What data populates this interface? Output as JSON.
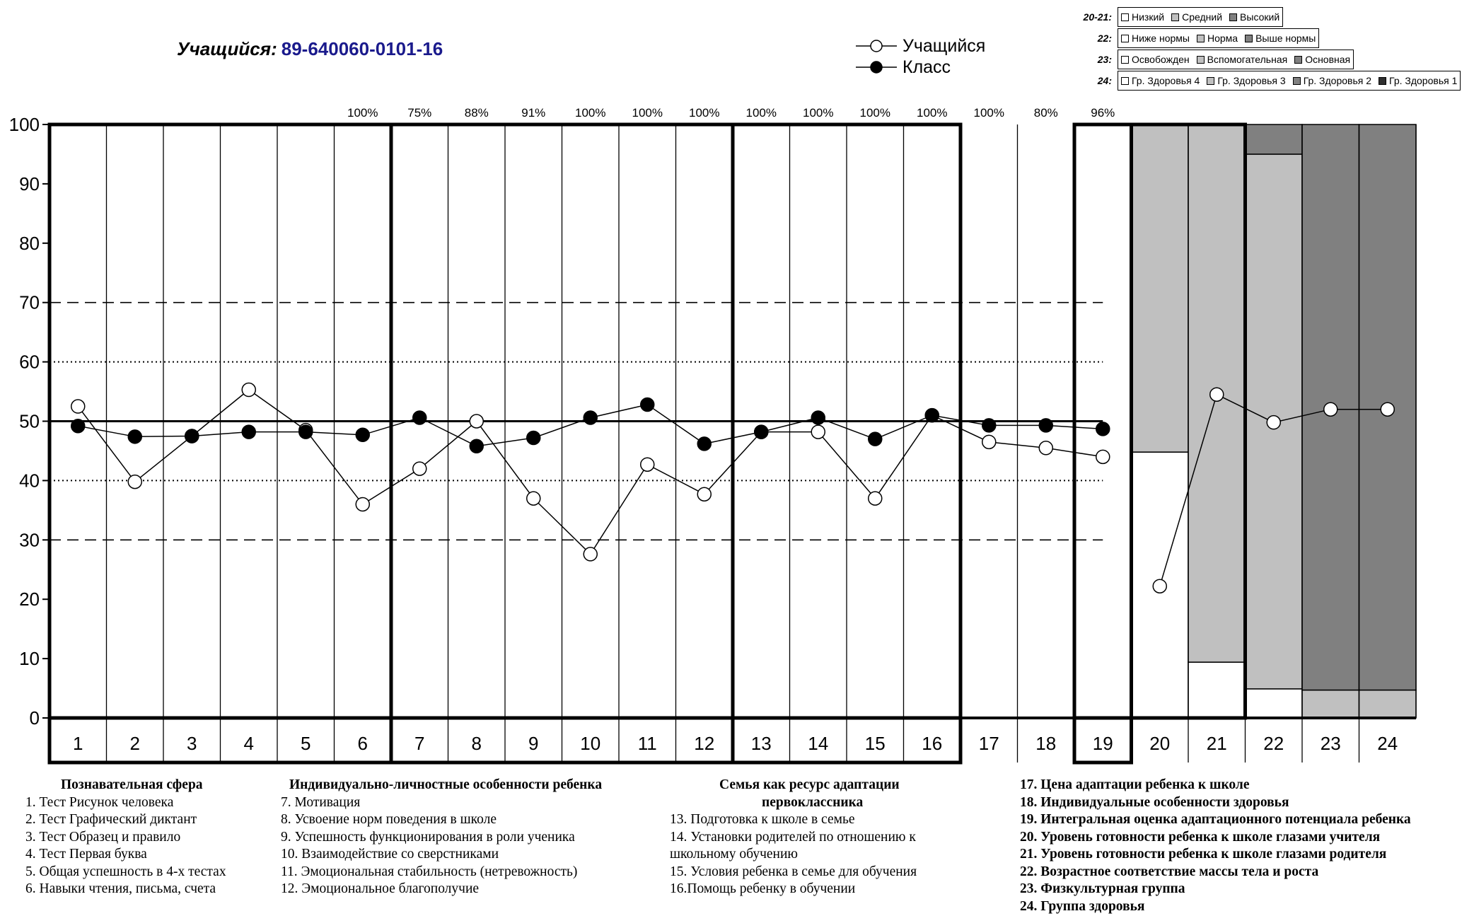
{
  "student": {
    "label": "Учащийся:",
    "id": "89-640060-0101-16"
  },
  "legend": [
    {
      "name": "Учащийся",
      "marker": "open-circle-icon"
    },
    {
      "name": "Класс",
      "marker": "filled-circle-icon"
    }
  ],
  "category_legend": [
    {
      "key": "20-21:",
      "items": [
        {
          "label": "Низкий",
          "color": "#ffffff"
        },
        {
          "label": "Средний",
          "color": "#c0c0c0"
        },
        {
          "label": "Высокий",
          "color": "#808080"
        }
      ]
    },
    {
      "key": "22:",
      "items": [
        {
          "label": "Ниже нормы",
          "color": "#ffffff"
        },
        {
          "label": "Норма",
          "color": "#c0c0c0"
        },
        {
          "label": "Выше нормы",
          "color": "#808080"
        }
      ]
    },
    {
      "key": "23:",
      "items": [
        {
          "label": "Освобожден",
          "color": "#ffffff"
        },
        {
          "label": "Вспомогательная",
          "color": "#c0c0c0"
        },
        {
          "label": "Основная",
          "color": "#808080"
        }
      ]
    },
    {
      "key": "24:",
      "items": [
        {
          "label": "Гр. Здоровья 4",
          "color": "#ffffff"
        },
        {
          "label": "Гр. Здоровья 3",
          "color": "#c0c0c0"
        },
        {
          "label": "Гр. Здоровья 2",
          "color": "#808080"
        },
        {
          "label": "Гр. Здоровья 1",
          "color": "#303030"
        }
      ]
    }
  ],
  "chart_data": {
    "type": "line",
    "categories": [
      "1",
      "2",
      "3",
      "4",
      "5",
      "6",
      "7",
      "8",
      "9",
      "10",
      "11",
      "12",
      "13",
      "14",
      "15",
      "16",
      "17",
      "18",
      "19",
      "20",
      "21",
      "22",
      "23",
      "24"
    ],
    "ylim": [
      0,
      100
    ],
    "yticks": [
      0,
      10,
      20,
      30,
      40,
      50,
      60,
      70,
      80,
      90,
      100
    ],
    "grid": "vertical category lines",
    "percent_labels": [
      {
        "x": 6,
        "text": "100%"
      },
      {
        "x": 7,
        "text": "75%"
      },
      {
        "x": 8,
        "text": "88%"
      },
      {
        "x": 9,
        "text": "91%"
      },
      {
        "x": 10,
        "text": "100%"
      },
      {
        "x": 11,
        "text": "100%"
      },
      {
        "x": 12,
        "text": "100%"
      },
      {
        "x": 13,
        "text": "100%"
      },
      {
        "x": 14,
        "text": "100%"
      },
      {
        "x": 15,
        "text": "100%"
      },
      {
        "x": 16,
        "text": "100%"
      },
      {
        "x": 17,
        "text": "100%"
      },
      {
        "x": 18,
        "text": "80%"
      },
      {
        "x": 19,
        "text": "96%"
      }
    ],
    "reference_lines": [
      {
        "y": 50,
        "style": "solid"
      },
      {
        "y": 40,
        "style": "dotted"
      },
      {
        "y": 60,
        "style": "dotted"
      },
      {
        "y": 30,
        "style": "dashed"
      },
      {
        "y": 70,
        "style": "dashed"
      }
    ],
    "series": [
      {
        "name": "Учащийся",
        "marker": "open",
        "segments": [
          {
            "x": [
              1,
              2,
              3,
              4,
              5,
              6,
              7,
              8,
              9,
              10,
              11,
              12,
              13,
              14,
              15,
              16,
              17,
              18,
              19
            ],
            "values": [
              52.5,
              39.8,
              47.5,
              55.3,
              48.5,
              36,
              42,
              50,
              37,
              27.6,
              42.7,
              37.7,
              48.2,
              48.2,
              37,
              51,
              46.5,
              45.5,
              44
            ]
          },
          {
            "x": [
              20,
              21,
              22,
              23,
              24
            ],
            "values": [
              22.2,
              54.5,
              49.8,
              52,
              52
            ]
          }
        ]
      },
      {
        "name": "Класс",
        "marker": "filled",
        "segments": [
          {
            "x": [
              1,
              2,
              3,
              4,
              5,
              6,
              7,
              8,
              9,
              10,
              11,
              12,
              13,
              14,
              15,
              16,
              17,
              18,
              19
            ],
            "values": [
              49.2,
              47.4,
              47.5,
              48.2,
              48.2,
              47.7,
              50.6,
              45.8,
              47.2,
              50.6,
              52.8,
              46.2,
              48.2,
              50.6,
              47,
              51,
              49.3,
              49.3,
              48.7
            ]
          }
        ]
      }
    ],
    "stacked_bars": [
      {
        "x": 20,
        "bands": [
          {
            "from": 0,
            "to": 44.8,
            "color": "#ffffff"
          },
          {
            "from": 44.8,
            "to": 100,
            "color": "#c0c0c0"
          }
        ]
      },
      {
        "x": 21,
        "bands": [
          {
            "from": 0,
            "to": 9.4,
            "color": "#ffffff"
          },
          {
            "from": 9.4,
            "to": 100,
            "color": "#c0c0c0"
          }
        ]
      },
      {
        "x": 22,
        "bands": [
          {
            "from": 0,
            "to": 4.9,
            "color": "#ffffff"
          },
          {
            "from": 4.9,
            "to": 95,
            "color": "#c0c0c0"
          },
          {
            "from": 95,
            "to": 100,
            "color": "#808080"
          }
        ]
      },
      {
        "x": 23,
        "bands": [
          {
            "from": 0,
            "to": 4.7,
            "color": "#c0c0c0"
          },
          {
            "from": 4.7,
            "to": 100,
            "color": "#808080"
          }
        ]
      },
      {
        "x": 24,
        "bands": [
          {
            "from": 0,
            "to": 4.7,
            "color": "#c0c0c0"
          },
          {
            "from": 4.7,
            "to": 100,
            "color": "#808080"
          }
        ]
      }
    ],
    "groups": [
      {
        "from": 1,
        "to": 6
      },
      {
        "from": 7,
        "to": 12
      },
      {
        "from": 13,
        "to": 16
      },
      {
        "from": 19,
        "to": 19
      },
      {
        "from": 20,
        "to": 21
      }
    ]
  },
  "footer": {
    "columns": [
      {
        "head_lines": [
          "Познавательная сфера"
        ],
        "items": [
          "1. Тест Рисунок человека",
          "2. Тест Графический диктант",
          "3. Тест Образец и правило",
          "4. Тест Первая буква",
          "5. Общая успешность в 4-х тестах",
          "6. Навыки чтения, письма, счета"
        ]
      },
      {
        "head_lines": [
          "Индивидуально-личностные особенности ребенка"
        ],
        "items": [
          "7. Мотивация",
          "8. Усвоение норм поведения в школе",
          "9. Успешность функционирования в роли ученика",
          "10. Взаимодействие со сверстниками",
          "11. Эмоциональная стабильность (нетревожность)",
          "12. Эмоциональное благополучие"
        ]
      },
      {
        "head_lines": [
          "Семья как ресурс адаптации",
          "первоклассника"
        ],
        "items": [
          "13. Подготовка к школе в семье",
          "14.  Установки  родителей  по  отношению  к",
          "школьному обучению",
          "15. Условия ребенка в семье для обучения",
          "16.Помощь ребенку в обучении"
        ]
      },
      {
        "head_lines": [],
        "items": [
          "17. Цена адаптации ребенка к школе",
          "18. Индивидуальные особенности здоровья",
          "19. Интегральная оценка адаптационного потенциала ребенка",
          "20. Уровень готовности ребенка к школе глазами учителя",
          "21. Уровень готовности ребенка к школе глазами родителя",
          "22. Возрастное соответствие  массы тела и роста",
          "23. Физкультурная группа",
          "24. Группа здоровья"
        ]
      }
    ]
  }
}
